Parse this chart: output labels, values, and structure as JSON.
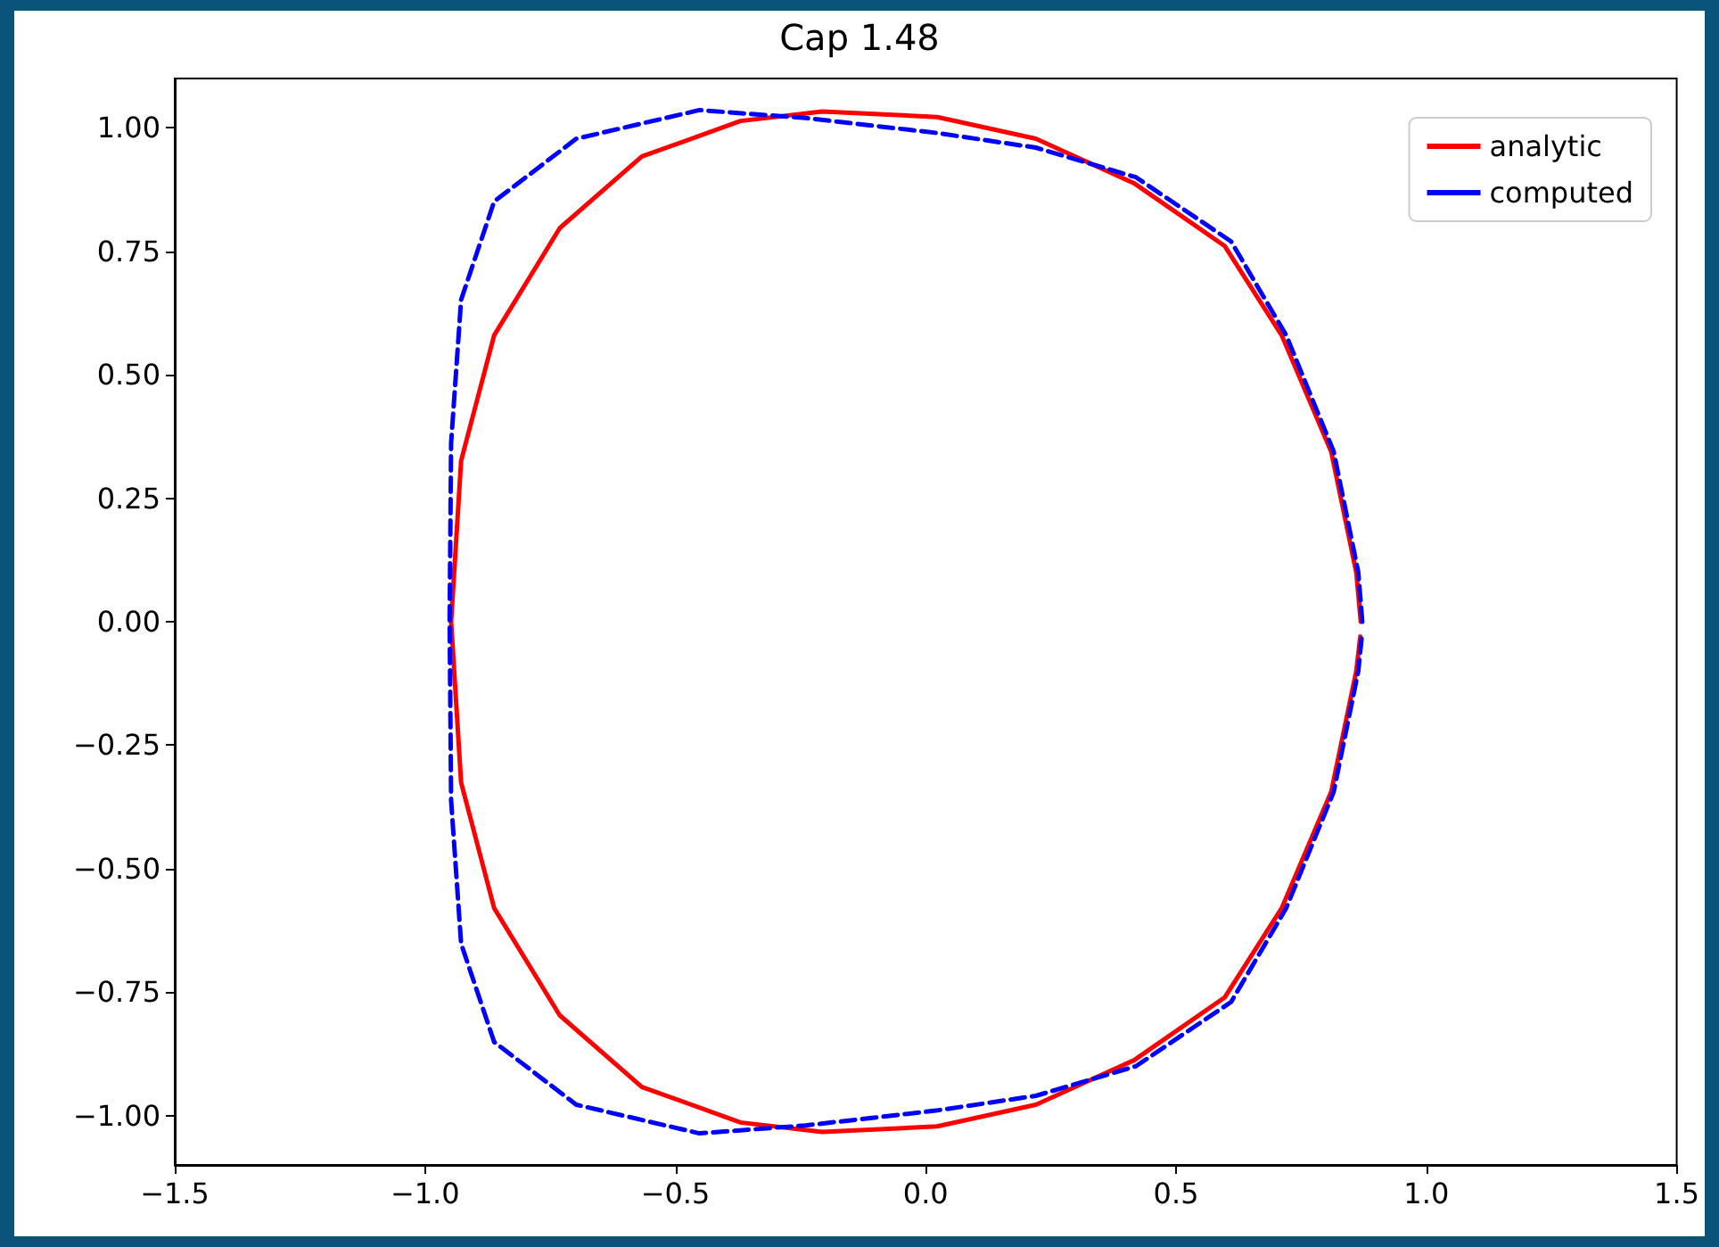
{
  "chart_data": {
    "type": "line",
    "title": "Cap 1.48",
    "legend": "top right",
    "grid": false,
    "xlim": [
      -1.5,
      1.5
    ],
    "xticks": [
      {
        "value": -1.5,
        "label": "−1.5"
      },
      {
        "value": -1,
        "label": "−1.0"
      },
      {
        "value": -0.5,
        "label": "−0.5"
      },
      {
        "value": 0,
        "label": "0.0"
      },
      {
        "value": 0.5,
        "label": "0.5"
      },
      {
        "value": 1,
        "label": "1.0"
      },
      {
        "value": 1.5,
        "label": "1.5"
      }
    ],
    "ylim": [
      -1.1,
      1.1
    ],
    "yticks": [
      {
        "value": -1,
        "label": "−1.00"
      },
      {
        "value": -0.75,
        "label": "−0.75"
      },
      {
        "value": -0.5,
        "label": "−0.50"
      },
      {
        "value": -0.25,
        "label": "−0.25"
      },
      {
        "value": 0,
        "label": "0.00"
      },
      {
        "value": 0.25,
        "label": "0.25"
      },
      {
        "value": 0.5,
        "label": "0.50"
      },
      {
        "value": 0.75,
        "label": "0.75"
      },
      {
        "value": 1,
        "label": "1.00"
      }
    ],
    "series": [
      {
        "name": "analytic",
        "color": "#ff0000",
        "line_style": "solid",
        "x": [
          0.869,
          0.86,
          0.81,
          0.711,
          0.597,
          0.416,
          0.22,
          0.023,
          -0.207,
          -0.37,
          -0.567,
          -0.731,
          -0.862,
          -0.928,
          -0.948,
          -0.928,
          -0.862,
          -0.731,
          -0.567,
          -0.37,
          -0.207,
          0.023,
          0.22,
          0.416,
          0.597,
          0.711,
          0.81,
          0.86,
          0.868
        ],
        "values": [
          0,
          0.1,
          0.344,
          0.58,
          0.761,
          0.888,
          0.978,
          1.022,
          1.033,
          1.014,
          0.942,
          0.797,
          0.58,
          0.326,
          0,
          -0.326,
          -0.58,
          -0.797,
          -0.942,
          -1.014,
          -1.033,
          -1.022,
          -0.978,
          -0.888,
          -0.761,
          -0.58,
          -0.344,
          -0.1,
          -0.03
        ]
      },
      {
        "name": "computed",
        "color": "#0000ff",
        "line_style": "dashed",
        "x": [
          0.872,
          0.864,
          0.815,
          0.72,
          0.61,
          0.42,
          0.22,
          0.02,
          -0.24,
          -0.452,
          -0.698,
          -0.862,
          -0.928,
          -0.948,
          -0.951,
          -0.948,
          -0.928,
          -0.862,
          -0.698,
          -0.452,
          -0.24,
          0.02,
          0.22,
          0.42,
          0.61,
          0.72,
          0.815,
          0.864,
          0.871
        ],
        "values": [
          0,
          0.1,
          0.344,
          0.58,
          0.77,
          0.9,
          0.96,
          0.99,
          1.02,
          1.036,
          0.978,
          0.851,
          0.652,
          0.362,
          0,
          -0.362,
          -0.652,
          -0.851,
          -0.978,
          -1.036,
          -1.02,
          -0.99,
          -0.96,
          -0.9,
          -0.77,
          -0.58,
          -0.344,
          -0.1,
          -0.03
        ]
      }
    ]
  }
}
